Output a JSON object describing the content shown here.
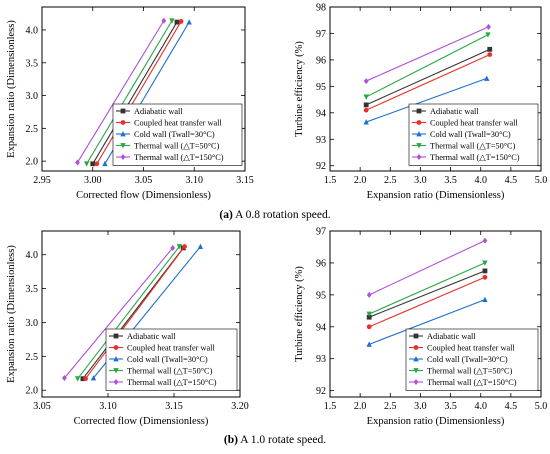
{
  "captions": {
    "a_label": "(a)",
    "a_text": "A 0.8 rotation speed.",
    "b_label": "(b)",
    "b_text": "A 1.0 rotate speed."
  },
  "series_styles": [
    {
      "name": "Adiabatic wall",
      "color": "#333333",
      "marker": "square"
    },
    {
      "name": "Coupled heat transfer wall",
      "color": "#e8302a",
      "marker": "circle"
    },
    {
      "name": "Cold wall (Twall=30°C)",
      "color": "#1f6fd1",
      "marker": "triangle-up"
    },
    {
      "name": "Thermal wall (△T=50°C)",
      "color": "#29a845",
      "marker": "triangle-down"
    },
    {
      "name": "Thermal wall (△T=150°C)",
      "color": "#b050d8",
      "marker": "diamond"
    }
  ],
  "chart_data": [
    {
      "type": "line",
      "panel": "a-left",
      "xlabel": "Corrected flow (Dimensionless)",
      "ylabel": "Expansion ratio (Dimensionless)",
      "xlim": [
        2.95,
        3.15
      ],
      "ylim": [
        1.85,
        4.35
      ],
      "xticks": [
        "2.95",
        "3.00",
        "3.05",
        "3.10",
        "3.15"
      ],
      "yticks": [
        "2.0",
        "2.5",
        "3.0",
        "3.5",
        "4.0"
      ],
      "xtick_values": [
        2.95,
        3.0,
        3.05,
        3.1,
        3.15
      ],
      "ytick_values": [
        2.0,
        2.5,
        3.0,
        3.5,
        4.0
      ],
      "legend_position": "bottom-right",
      "series": [
        {
          "name": "Adiabatic wall",
          "x": [
            3.0,
            3.083
          ],
          "y": [
            1.96,
            4.12
          ]
        },
        {
          "name": "Coupled heat transfer wall",
          "x": [
            3.004,
            3.087
          ],
          "y": [
            1.96,
            4.13
          ]
        },
        {
          "name": "Cold wall (Twall=30°C)",
          "x": [
            3.012,
            3.095
          ],
          "y": [
            1.96,
            4.12
          ]
        },
        {
          "name": "Thermal wall (△T=50°C)",
          "x": [
            2.994,
            3.078
          ],
          "y": [
            1.96,
            4.14
          ]
        },
        {
          "name": "Thermal wall (△T=150°C)",
          "x": [
            2.985,
            3.07
          ],
          "y": [
            1.98,
            4.14
          ]
        }
      ]
    },
    {
      "type": "line",
      "panel": "a-right",
      "xlabel": "Expansion ratio (Dimensionless)",
      "ylabel": "Turbine efficiency (%)",
      "xlim": [
        1.5,
        5.0
      ],
      "ylim": [
        91.8,
        98.0
      ],
      "xticks": [
        "1.5",
        "2.0",
        "2.5",
        "3.0",
        "3.5",
        "4.0",
        "4.5",
        "5.0"
      ],
      "yticks": [
        "92",
        "93",
        "94",
        "95",
        "96",
        "97",
        "98"
      ],
      "xtick_values": [
        1.5,
        2.0,
        2.5,
        3.0,
        3.5,
        4.0,
        4.5,
        5.0
      ],
      "ytick_values": [
        92,
        93,
        94,
        95,
        96,
        97,
        98
      ],
      "legend_position": "bottom-right",
      "series": [
        {
          "name": "Adiabatic wall",
          "x": [
            2.1,
            4.15
          ],
          "y": [
            94.3,
            96.4
          ]
        },
        {
          "name": "Coupled heat transfer wall",
          "x": [
            2.1,
            4.15
          ],
          "y": [
            94.1,
            96.2
          ]
        },
        {
          "name": "Cold wall (Twall=30°C)",
          "x": [
            2.1,
            4.1
          ],
          "y": [
            93.65,
            95.3
          ]
        },
        {
          "name": "Thermal wall (△T=50°C)",
          "x": [
            2.1,
            4.12
          ],
          "y": [
            94.6,
            96.95
          ]
        },
        {
          "name": "Thermal wall (△T=150°C)",
          "x": [
            2.1,
            4.13
          ],
          "y": [
            95.2,
            97.25
          ]
        }
      ]
    },
    {
      "type": "line",
      "panel": "b-left",
      "xlabel": "Corrected flow (Dimensionless)",
      "ylabel": "Expansion ratio (Dimensionless)",
      "xlim": [
        3.05,
        3.2
      ],
      "ylim": [
        1.9,
        4.35
      ],
      "xticks": [
        "3.05",
        "3.10",
        "3.15",
        "3.20"
      ],
      "yticks": [
        "2.0",
        "2.5",
        "3.0",
        "3.5",
        "4.0"
      ],
      "xtick_values": [
        3.05,
        3.1,
        3.15,
        3.2
      ],
      "ytick_values": [
        2.0,
        2.5,
        3.0,
        3.5,
        4.0
      ],
      "legend_position": "bottom-right",
      "series": [
        {
          "name": "Adiabatic wall",
          "x": [
            3.081,
            3.157
          ],
          "y": [
            2.17,
            4.1
          ]
        },
        {
          "name": "Coupled heat transfer wall",
          "x": [
            3.083,
            3.158
          ],
          "y": [
            2.17,
            4.12
          ]
        },
        {
          "name": "Cold wall (Twall=30°C)",
          "x": [
            3.089,
            3.17
          ],
          "y": [
            2.18,
            4.12
          ]
        },
        {
          "name": "Thermal wall (△T=50°C)",
          "x": [
            3.077,
            3.154
          ],
          "y": [
            2.17,
            4.12
          ]
        },
        {
          "name": "Thermal wall (△T=150°C)",
          "x": [
            3.067,
            3.149
          ],
          "y": [
            2.18,
            4.1
          ]
        }
      ]
    },
    {
      "type": "line",
      "panel": "b-right",
      "xlabel": "Expansion ratio (Dimensionless)",
      "ylabel": "Turbine efficiency (%)",
      "xlim": [
        1.5,
        5.0
      ],
      "ylim": [
        91.8,
        97.0
      ],
      "xticks": [
        "1.5",
        "2.0",
        "2.5",
        "3.0",
        "3.5",
        "4.0",
        "4.5",
        "5.0"
      ],
      "yticks": [
        "92",
        "93",
        "94",
        "95",
        "96",
        "97"
      ],
      "xtick_values": [
        1.5,
        2.0,
        2.5,
        3.0,
        3.5,
        4.0,
        4.5,
        5.0
      ],
      "ytick_values": [
        92,
        93,
        94,
        95,
        96,
        97
      ],
      "legend_position": "bottom-right",
      "series": [
        {
          "name": "Adiabatic wall",
          "x": [
            2.15,
            4.07
          ],
          "y": [
            94.3,
            95.75
          ]
        },
        {
          "name": "Coupled heat transfer wall",
          "x": [
            2.15,
            4.07
          ],
          "y": [
            94.0,
            95.55
          ]
        },
        {
          "name": "Cold wall (Twall=30°C)",
          "x": [
            2.15,
            4.07
          ],
          "y": [
            93.45,
            94.85
          ]
        },
        {
          "name": "Thermal wall (△T=50°C)",
          "x": [
            2.15,
            4.07
          ],
          "y": [
            94.4,
            96.0
          ]
        },
        {
          "name": "Thermal wall (△T=150°C)",
          "x": [
            2.15,
            4.07
          ],
          "y": [
            95.0,
            96.7
          ]
        }
      ]
    }
  ]
}
